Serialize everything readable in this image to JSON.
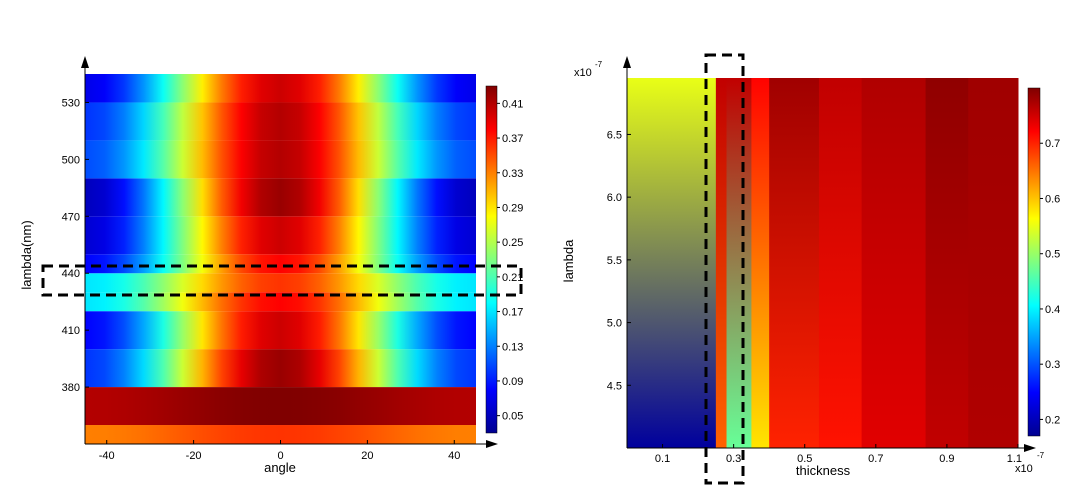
{
  "chart_data": [
    {
      "type": "heatmap",
      "title": "",
      "xlabel": "angle",
      "ylabel": "lambda(nm)",
      "x_ticks": [
        -40,
        -20,
        0,
        20,
        40
      ],
      "y_ticks": [
        380,
        410,
        440,
        470,
        500,
        530
      ],
      "xlim": [
        -45,
        45
      ],
      "ylim": [
        350,
        545
      ],
      "rows": [
        {
          "y0": 350,
          "y1": 360,
          "center": 0.36,
          "edge": 0.33
        },
        {
          "y0": 360,
          "y1": 380,
          "center": 0.43,
          "edge": 0.41
        },
        {
          "y0": 380,
          "y1": 400,
          "center": 0.42,
          "edge": 0.1
        },
        {
          "y0": 400,
          "y1": 420,
          "center": 0.4,
          "edge": 0.08
        },
        {
          "y0": 420,
          "y1": 430,
          "center": 0.38,
          "edge": 0.17
        },
        {
          "y0": 430,
          "y1": 440,
          "center": 0.36,
          "edge": 0.17
        },
        {
          "y0": 440,
          "y1": 450,
          "center": 0.38,
          "edge": 0.08
        },
        {
          "y0": 450,
          "y1": 470,
          "center": 0.4,
          "edge": 0.06
        },
        {
          "y0": 470,
          "y1": 490,
          "center": 0.42,
          "edge": 0.05
        },
        {
          "y0": 490,
          "y1": 510,
          "center": 0.41,
          "edge": 0.11
        },
        {
          "y0": 510,
          "y1": 530,
          "center": 0.41,
          "edge": 0.1
        },
        {
          "y0": 530,
          "y1": 545,
          "center": 0.4,
          "edge": 0.07
        }
      ],
      "colorbar": {
        "min": 0.03,
        "max": 0.43,
        "ticks": [
          "0.05",
          "0.09",
          "0.13",
          "0.17",
          "0.21",
          "0.25",
          "0.29",
          "0.33",
          "0.37",
          "0.41"
        ]
      },
      "highlight": {
        "y0": 430,
        "y1": 448
      }
    },
    {
      "type": "heatmap",
      "title": "",
      "xlabel": "thickness",
      "ylabel": "lambda",
      "x_exponent": "x10",
      "x_exponent_power": "-7",
      "y_exponent": "x10",
      "y_exponent_power": "-7",
      "x_ticks": [
        "0.1",
        "0.3",
        "0.5",
        "0.7",
        "0.9",
        "1.1"
      ],
      "y_ticks": [
        "4.5",
        "5.0",
        "5.5",
        "6.0",
        "6.5"
      ],
      "xlim": [
        0,
        1.1
      ],
      "ylim": [
        4.0,
        6.95
      ],
      "columns": [
        {
          "x0": 0.0,
          "x1": 0.25,
          "top": 0.55,
          "bottom": 0.18
        },
        {
          "x0": 0.25,
          "x1": 0.28,
          "top": 0.76,
          "bottom": 0.66
        },
        {
          "x0": 0.28,
          "x1": 0.35,
          "top": 0.76,
          "bottom": 0.47
        },
        {
          "x0": 0.35,
          "x1": 0.4,
          "top": 0.72,
          "bottom": 0.58
        },
        {
          "x0": 0.4,
          "x1": 0.54,
          "top": 0.78,
          "bottom": 0.7
        },
        {
          "x0": 0.54,
          "x1": 0.66,
          "top": 0.76,
          "bottom": 0.71
        },
        {
          "x0": 0.66,
          "x1": 0.84,
          "top": 0.77,
          "bottom": 0.74
        },
        {
          "x0": 0.84,
          "x1": 0.96,
          "top": 0.79,
          "bottom": 0.76
        },
        {
          "x0": 0.96,
          "x1": 1.1,
          "top": 0.78,
          "bottom": 0.77
        }
      ],
      "colorbar": {
        "min": 0.17,
        "max": 0.8,
        "ticks": [
          "0.2",
          "0.3",
          "0.4",
          "0.5",
          "0.6",
          "0.7"
        ]
      },
      "highlight": {
        "x0": 0.23,
        "x1": 0.345
      }
    }
  ]
}
